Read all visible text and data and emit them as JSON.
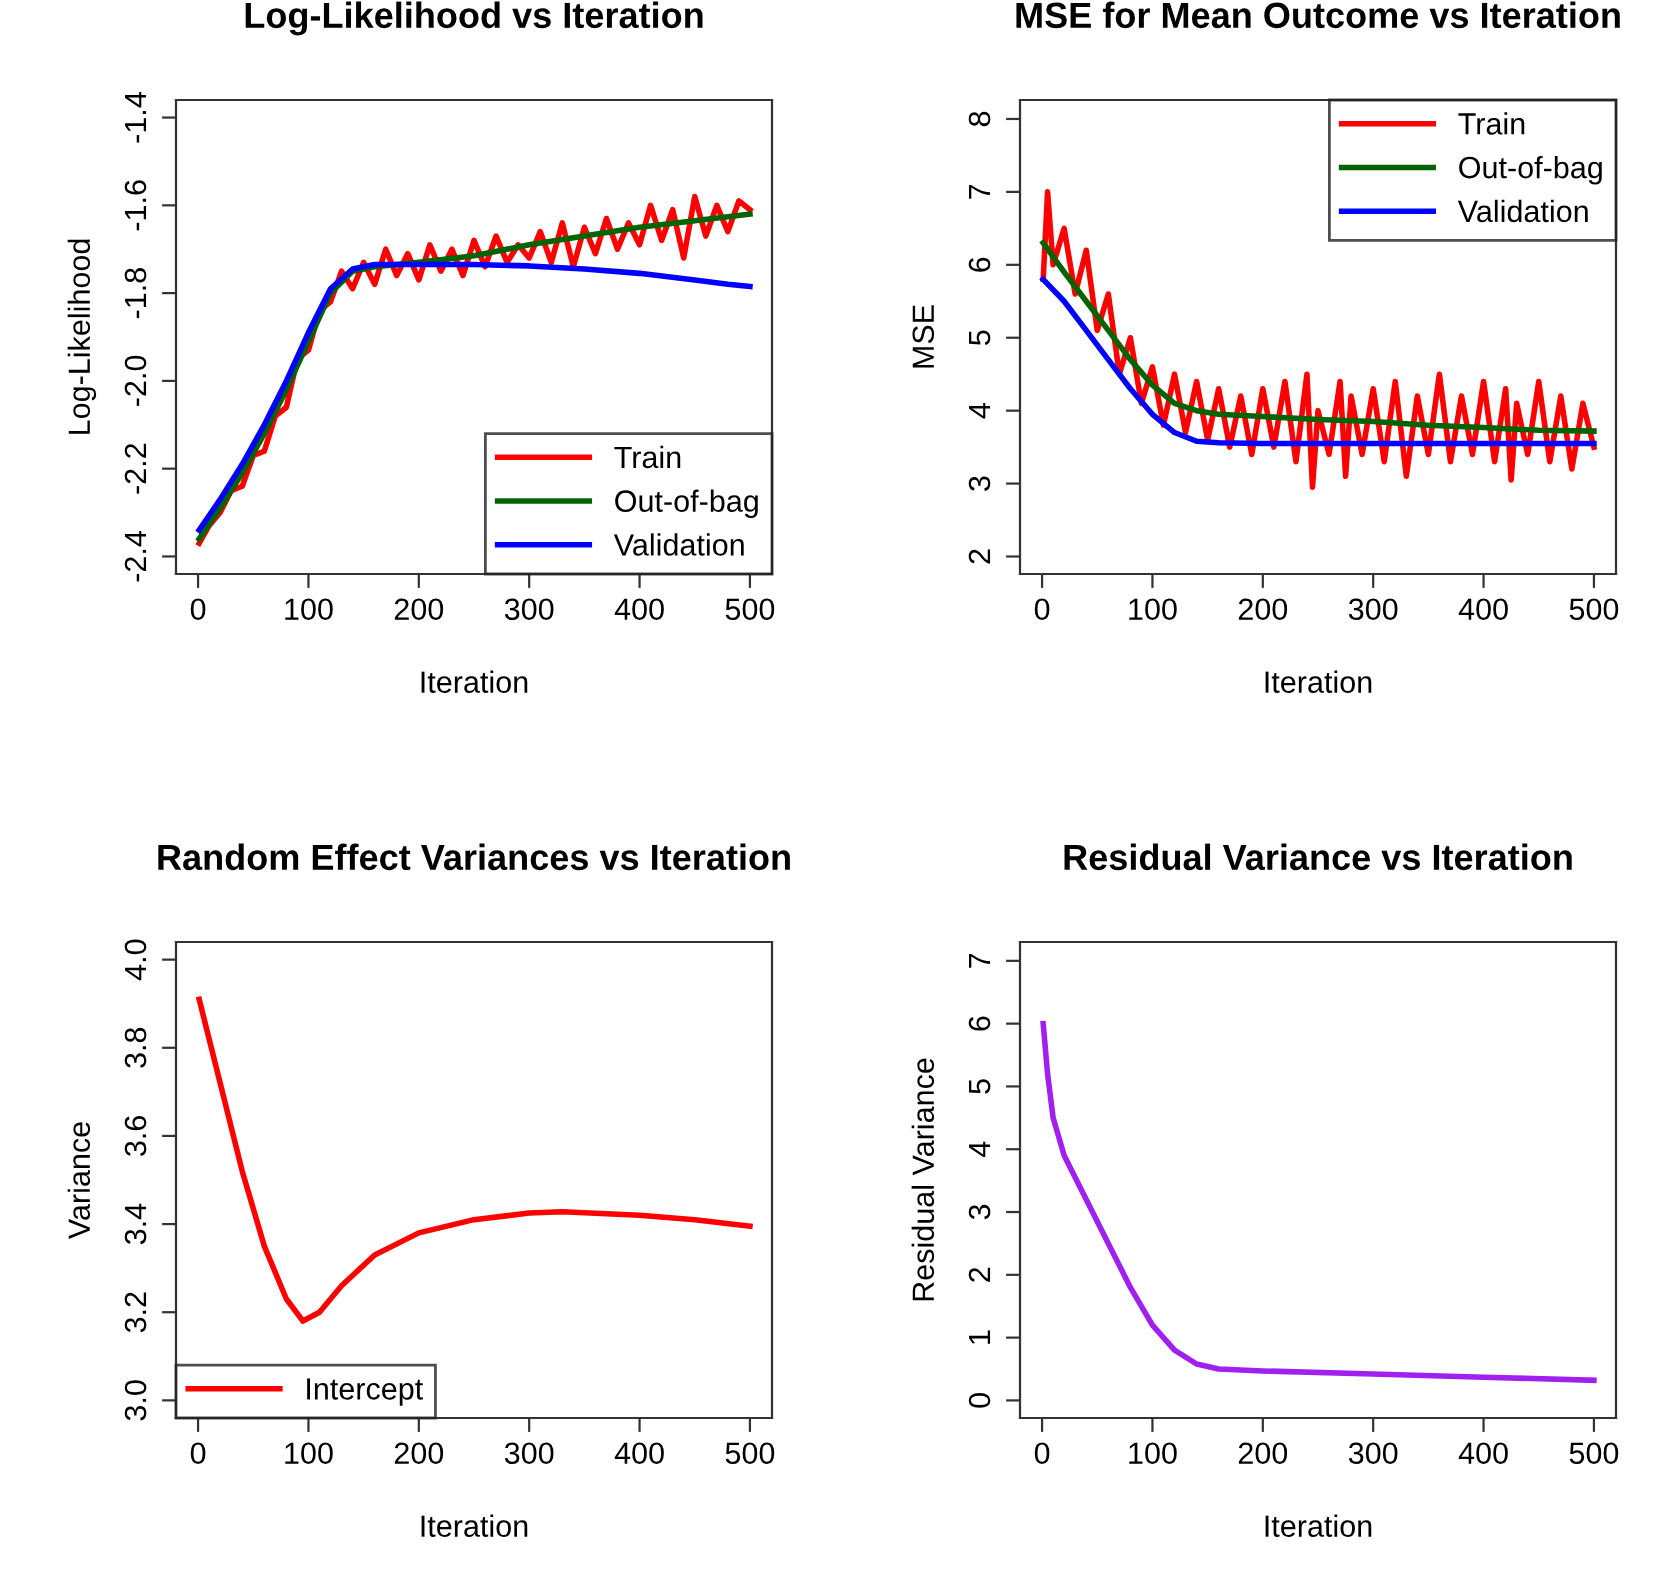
{
  "chart_data": [
    {
      "type": "line",
      "title": "Log-Likelihood vs Iteration",
      "xlabel": "Iteration",
      "ylabel": "Log-Likelihood",
      "xlim": [
        -20,
        520
      ],
      "xticks": [
        0,
        100,
        200,
        300,
        400,
        500
      ],
      "ylim": [
        -2.44,
        -1.36
      ],
      "yticks": [
        -2.4,
        -2.2,
        {
          "value": -2.0,
          "label": "-2.0"
        },
        -1.8,
        -1.6,
        -1.4
      ],
      "legend": "bottom right",
      "series": [
        {
          "name": "Train",
          "color": "#ff0000",
          "x": [
            1,
            10,
            20,
            30,
            40,
            50,
            60,
            70,
            80,
            90,
            100,
            110,
            120,
            130,
            140,
            150,
            160,
            170,
            180,
            190,
            200,
            210,
            220,
            230,
            240,
            250,
            260,
            270,
            280,
            290,
            300,
            310,
            320,
            330,
            340,
            350,
            360,
            370,
            380,
            390,
            400,
            410,
            420,
            430,
            440,
            450,
            460,
            470,
            480,
            490,
            500
          ],
          "values": [
            -2.37,
            -2.33,
            -2.3,
            -2.25,
            -2.24,
            -2.17,
            -2.16,
            -2.08,
            -2.06,
            -1.95,
            -1.93,
            -1.84,
            -1.82,
            -1.75,
            -1.79,
            -1.73,
            -1.78,
            -1.7,
            -1.76,
            -1.71,
            -1.77,
            -1.69,
            -1.75,
            -1.7,
            -1.76,
            -1.68,
            -1.74,
            -1.67,
            -1.73,
            -1.69,
            -1.72,
            -1.66,
            -1.73,
            -1.64,
            -1.74,
            -1.65,
            -1.71,
            -1.63,
            -1.7,
            -1.64,
            -1.69,
            -1.6,
            -1.68,
            -1.61,
            -1.72,
            -1.58,
            -1.67,
            -1.6,
            -1.66,
            -1.59,
            -1.61
          ]
        },
        {
          "name": "Out-of-bag",
          "color": "#006400",
          "x": [
            1,
            20,
            40,
            60,
            80,
            100,
            120,
            140,
            160,
            200,
            250,
            300,
            350,
            400,
            450,
            500
          ],
          "values": [
            -2.36,
            -2.29,
            -2.21,
            -2.12,
            -2.02,
            -1.91,
            -1.8,
            -1.75,
            -1.74,
            -1.73,
            -1.715,
            -1.69,
            -1.67,
            -1.65,
            -1.635,
            -1.62
          ]
        },
        {
          "name": "Validation",
          "color": "#0000ff",
          "x": [
            1,
            20,
            40,
            60,
            80,
            100,
            120,
            140,
            160,
            200,
            250,
            300,
            350,
            400,
            450,
            480,
            500
          ],
          "values": [
            -2.34,
            -2.27,
            -2.19,
            -2.1,
            -2.0,
            -1.89,
            -1.79,
            -1.745,
            -1.735,
            -1.735,
            -1.735,
            -1.738,
            -1.745,
            -1.755,
            -1.77,
            -1.78,
            -1.785
          ]
        }
      ]
    },
    {
      "type": "line",
      "title": "MSE for Mean Outcome vs Iteration",
      "xlabel": "Iteration",
      "ylabel": "MSE",
      "xlim": [
        -20,
        520
      ],
      "xticks": [
        0,
        100,
        200,
        300,
        400,
        500
      ],
      "ylim": [
        1.76,
        8.26
      ],
      "yticks": [
        2,
        3,
        4,
        5,
        6,
        7,
        8
      ],
      "legend": "top right",
      "series": [
        {
          "name": "Train",
          "color": "#ff0000",
          "x": [
            1,
            5,
            10,
            20,
            30,
            40,
            50,
            60,
            70,
            80,
            90,
            100,
            110,
            120,
            130,
            140,
            150,
            160,
            170,
            180,
            190,
            200,
            210,
            220,
            230,
            240,
            245,
            250,
            260,
            270,
            275,
            280,
            290,
            300,
            310,
            320,
            330,
            340,
            350,
            360,
            370,
            380,
            390,
            400,
            410,
            420,
            425,
            430,
            440,
            450,
            460,
            470,
            480,
            490,
            500
          ],
          "values": [
            5.8,
            7.0,
            6.0,
            6.5,
            5.6,
            6.2,
            5.1,
            5.6,
            4.5,
            5.0,
            4.1,
            4.6,
            3.8,
            4.5,
            3.7,
            4.4,
            3.6,
            4.3,
            3.5,
            4.2,
            3.4,
            4.3,
            3.5,
            4.4,
            3.3,
            4.5,
            2.95,
            4.0,
            3.4,
            4.4,
            3.1,
            4.2,
            3.4,
            4.3,
            3.3,
            4.4,
            3.1,
            4.2,
            3.4,
            4.5,
            3.3,
            4.2,
            3.4,
            4.4,
            3.3,
            4.3,
            3.05,
            4.1,
            3.4,
            4.4,
            3.3,
            4.2,
            3.2,
            4.1,
            3.5
          ]
        },
        {
          "name": "Out-of-bag",
          "color": "#006400",
          "x": [
            1,
            20,
            40,
            60,
            80,
            100,
            120,
            140,
            160,
            200,
            250,
            300,
            350,
            400,
            450,
            500
          ],
          "values": [
            6.3,
            5.9,
            5.5,
            5.1,
            4.7,
            4.35,
            4.1,
            4.0,
            3.95,
            3.92,
            3.88,
            3.85,
            3.8,
            3.77,
            3.73,
            3.72
          ]
        },
        {
          "name": "Validation",
          "color": "#0000ff",
          "x": [
            1,
            20,
            40,
            60,
            80,
            100,
            120,
            140,
            160,
            200,
            300,
            400,
            500
          ],
          "values": [
            5.8,
            5.5,
            5.1,
            4.7,
            4.3,
            3.95,
            3.7,
            3.58,
            3.56,
            3.55,
            3.55,
            3.55,
            3.55
          ]
        }
      ]
    },
    {
      "type": "line",
      "title": "Random Effect Variances vs Iteration",
      "xlabel": "Iteration",
      "ylabel": "Variance",
      "xlim": [
        -20,
        520
      ],
      "xticks": [
        0,
        100,
        200,
        300,
        400,
        500
      ],
      "ylim": [
        2.96,
        4.04
      ],
      "yticks": [
        {
          "value": 3.0,
          "label": "3.0"
        },
        3.2,
        3.4,
        3.6,
        3.8,
        {
          "value": 4.0,
          "label": "4.0"
        }
      ],
      "legend": "bottom left",
      "series": [
        {
          "name": "Intercept",
          "color": "#ff0000",
          "x": [
            1,
            20,
            40,
            60,
            80,
            95,
            110,
            130,
            160,
            200,
            250,
            300,
            330,
            400,
            450,
            500
          ],
          "values": [
            3.91,
            3.72,
            3.52,
            3.35,
            3.23,
            3.18,
            3.2,
            3.26,
            3.33,
            3.38,
            3.41,
            3.425,
            3.428,
            3.42,
            3.41,
            3.395
          ]
        }
      ]
    },
    {
      "type": "line",
      "title": "Residual Variance vs Iteration",
      "xlabel": "Iteration",
      "ylabel": "Residual Variance",
      "xlim": [
        -20,
        520
      ],
      "xticks": [
        0,
        100,
        200,
        300,
        400,
        500
      ],
      "ylim": [
        -0.28,
        7.3
      ],
      "yticks": [
        0,
        1,
        2,
        3,
        4,
        5,
        6,
        7
      ],
      "series": [
        {
          "color": "#a020f0",
          "x": [
            1,
            5,
            10,
            20,
            40,
            60,
            80,
            100,
            120,
            140,
            160,
            200,
            300,
            400,
            500
          ],
          "values": [
            6.0,
            5.2,
            4.5,
            3.9,
            3.2,
            2.5,
            1.8,
            1.2,
            0.8,
            0.58,
            0.5,
            0.47,
            0.42,
            0.37,
            0.32
          ]
        }
      ]
    }
  ]
}
